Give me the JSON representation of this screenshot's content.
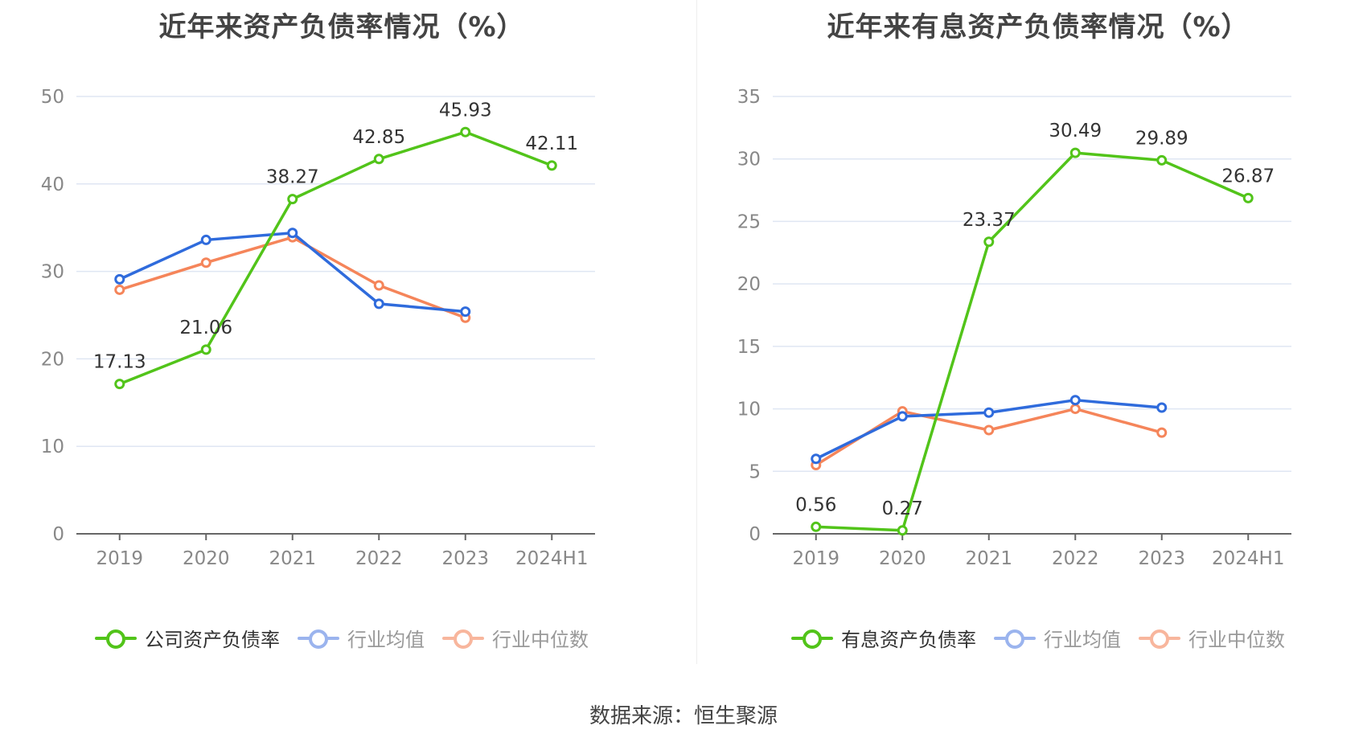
{
  "source_text": "数据来源：恒生聚源",
  "chart_data": [
    {
      "type": "line",
      "title": "近年来资产负债率情况（%）",
      "categories": [
        "2019",
        "2020",
        "2021",
        "2022",
        "2023",
        "2024H1"
      ],
      "ylim": [
        0,
        50
      ],
      "yticks": [
        0,
        10,
        20,
        30,
        40,
        50
      ],
      "series": [
        {
          "name": "公司资产负债率",
          "color": "#52c41a",
          "values": [
            17.13,
            21.06,
            38.27,
            42.85,
            45.93,
            42.11
          ],
          "show_labels": true,
          "active": true
        },
        {
          "name": "行业均值",
          "color": "#2f6bdc",
          "values": [
            29.1,
            33.6,
            34.4,
            26.3,
            25.4,
            null
          ],
          "show_labels": false,
          "active": false
        },
        {
          "name": "行业中位数",
          "color": "#f5855a",
          "values": [
            27.9,
            31.0,
            33.9,
            28.4,
            24.7,
            null
          ],
          "show_labels": false,
          "active": false
        }
      ]
    },
    {
      "type": "line",
      "title": "近年来有息资产负债率情况（%）",
      "categories": [
        "2019",
        "2020",
        "2021",
        "2022",
        "2023",
        "2024H1"
      ],
      "ylim": [
        0,
        35
      ],
      "yticks": [
        0,
        5,
        10,
        15,
        20,
        25,
        30,
        35
      ],
      "series": [
        {
          "name": "有息资产负债率",
          "color": "#52c41a",
          "values": [
            0.56,
            0.27,
            23.37,
            30.49,
            29.89,
            26.87
          ],
          "show_labels": true,
          "active": true
        },
        {
          "name": "行业均值",
          "color": "#2f6bdc",
          "values": [
            6.0,
            9.4,
            9.7,
            10.7,
            10.1,
            null
          ],
          "show_labels": false,
          "active": false
        },
        {
          "name": "行业中位数",
          "color": "#f5855a",
          "values": [
            5.5,
            9.8,
            8.3,
            10.0,
            8.1,
            null
          ],
          "show_labels": false,
          "active": false
        }
      ]
    }
  ]
}
